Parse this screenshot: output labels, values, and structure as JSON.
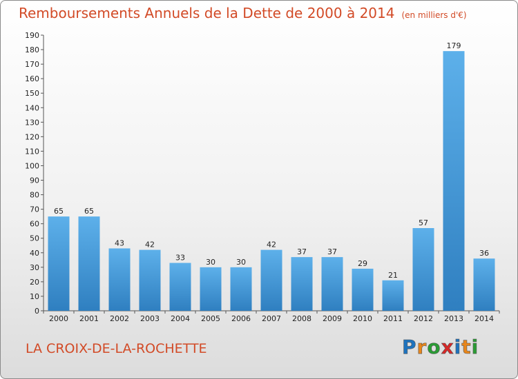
{
  "title": "Remboursements Annuels de la Dette de 2000 à 2014",
  "unit_note": "(en milliers d'€)",
  "commune": "LA CROIX-DE-LA-ROCHETTE",
  "logo": {
    "letters": [
      "P",
      "r",
      "o",
      "x",
      "i",
      "t",
      "i"
    ],
    "colors": [
      "#1e73be",
      "#e8861b",
      "#2a9c34",
      "#d62828",
      "#1e73be",
      "#e8861b",
      "#2a9c34"
    ]
  },
  "colors": {
    "accent": "#d24a26",
    "bar_light": "#5db0ea",
    "bar_dark": "#2f7fc0"
  },
  "chart_data": {
    "type": "bar",
    "categories": [
      "2000",
      "2001",
      "2002",
      "2003",
      "2004",
      "2005",
      "2006",
      "2007",
      "2008",
      "2009",
      "2010",
      "2011",
      "2012",
      "2013",
      "2014"
    ],
    "values": [
      65,
      65,
      43,
      42,
      33,
      30,
      30,
      42,
      37,
      37,
      29,
      21,
      57,
      179,
      36
    ],
    "title": "Remboursements Annuels de la Dette de 2000 à 2014",
    "xlabel": "",
    "ylabel": "",
    "ylim": [
      0,
      190
    ],
    "yticks": [
      0,
      10,
      20,
      30,
      40,
      50,
      60,
      70,
      80,
      90,
      100,
      110,
      120,
      130,
      140,
      150,
      160,
      170,
      180,
      190
    ],
    "grid": false,
    "legend": "none"
  }
}
